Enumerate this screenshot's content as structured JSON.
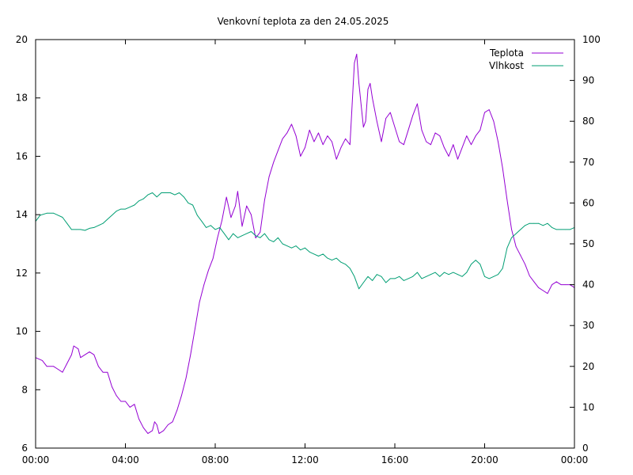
{
  "chart_data": {
    "type": "line",
    "title": "Venkovní teplota za den 24.05.2025",
    "xlabel": "",
    "ylabel": "",
    "y2label": "",
    "x_ticks": [
      "00:00",
      "04:00",
      "08:00",
      "12:00",
      "16:00",
      "20:00",
      "00:00"
    ],
    "x_range_hours": [
      0,
      24
    ],
    "ylim": [
      6,
      20
    ],
    "y_ticks": [
      6,
      8,
      10,
      12,
      14,
      16,
      18,
      20
    ],
    "y2lim": [
      0,
      100
    ],
    "y2_ticks": [
      0,
      10,
      20,
      30,
      40,
      50,
      60,
      70,
      80,
      90,
      100
    ],
    "grid": false,
    "legend_position": "top-right",
    "series": [
      {
        "name": "Teplota",
        "axis": "left",
        "color": "#9400d3",
        "points": [
          [
            0.0,
            9.1
          ],
          [
            0.3,
            9.0
          ],
          [
            0.5,
            8.8
          ],
          [
            0.8,
            8.8
          ],
          [
            1.0,
            8.7
          ],
          [
            1.2,
            8.6
          ],
          [
            1.4,
            8.9
          ],
          [
            1.6,
            9.2
          ],
          [
            1.7,
            9.5
          ],
          [
            1.9,
            9.4
          ],
          [
            2.0,
            9.1
          ],
          [
            2.2,
            9.2
          ],
          [
            2.4,
            9.3
          ],
          [
            2.6,
            9.2
          ],
          [
            2.8,
            8.8
          ],
          [
            3.0,
            8.6
          ],
          [
            3.2,
            8.6
          ],
          [
            3.4,
            8.1
          ],
          [
            3.6,
            7.8
          ],
          [
            3.8,
            7.6
          ],
          [
            4.0,
            7.6
          ],
          [
            4.2,
            7.4
          ],
          [
            4.4,
            7.5
          ],
          [
            4.6,
            7.0
          ],
          [
            4.8,
            6.7
          ],
          [
            5.0,
            6.5
          ],
          [
            5.2,
            6.6
          ],
          [
            5.3,
            6.9
          ],
          [
            5.4,
            6.8
          ],
          [
            5.5,
            6.5
          ],
          [
            5.7,
            6.6
          ],
          [
            5.9,
            6.8
          ],
          [
            6.1,
            6.9
          ],
          [
            6.3,
            7.3
          ],
          [
            6.5,
            7.8
          ],
          [
            6.7,
            8.4
          ],
          [
            6.9,
            9.2
          ],
          [
            7.1,
            10.1
          ],
          [
            7.3,
            11.0
          ],
          [
            7.5,
            11.6
          ],
          [
            7.7,
            12.1
          ],
          [
            7.9,
            12.5
          ],
          [
            8.1,
            13.2
          ],
          [
            8.3,
            13.8
          ],
          [
            8.5,
            14.6
          ],
          [
            8.7,
            13.9
          ],
          [
            8.9,
            14.3
          ],
          [
            9.0,
            14.8
          ],
          [
            9.2,
            13.6
          ],
          [
            9.4,
            14.3
          ],
          [
            9.6,
            14.0
          ],
          [
            9.8,
            13.2
          ],
          [
            10.0,
            13.4
          ],
          [
            10.2,
            14.5
          ],
          [
            10.4,
            15.3
          ],
          [
            10.6,
            15.8
          ],
          [
            10.8,
            16.2
          ],
          [
            11.0,
            16.6
          ],
          [
            11.2,
            16.8
          ],
          [
            11.4,
            17.1
          ],
          [
            11.6,
            16.7
          ],
          [
            11.8,
            16.0
          ],
          [
            12.0,
            16.3
          ],
          [
            12.2,
            16.9
          ],
          [
            12.4,
            16.5
          ],
          [
            12.6,
            16.8
          ],
          [
            12.8,
            16.4
          ],
          [
            13.0,
            16.7
          ],
          [
            13.2,
            16.5
          ],
          [
            13.4,
            15.9
          ],
          [
            13.6,
            16.3
          ],
          [
            13.8,
            16.6
          ],
          [
            14.0,
            16.4
          ],
          [
            14.1,
            17.8
          ],
          [
            14.2,
            19.2
          ],
          [
            14.3,
            19.5
          ],
          [
            14.4,
            18.5
          ],
          [
            14.6,
            17.0
          ],
          [
            14.7,
            17.2
          ],
          [
            14.8,
            18.3
          ],
          [
            14.9,
            18.5
          ],
          [
            15.0,
            18.0
          ],
          [
            15.2,
            17.2
          ],
          [
            15.4,
            16.5
          ],
          [
            15.6,
            17.3
          ],
          [
            15.8,
            17.5
          ],
          [
            16.0,
            17.0
          ],
          [
            16.2,
            16.5
          ],
          [
            16.4,
            16.4
          ],
          [
            16.6,
            16.9
          ],
          [
            16.8,
            17.4
          ],
          [
            17.0,
            17.8
          ],
          [
            17.2,
            16.9
          ],
          [
            17.4,
            16.5
          ],
          [
            17.6,
            16.4
          ],
          [
            17.8,
            16.8
          ],
          [
            18.0,
            16.7
          ],
          [
            18.2,
            16.3
          ],
          [
            18.4,
            16.0
          ],
          [
            18.6,
            16.4
          ],
          [
            18.8,
            15.9
          ],
          [
            19.0,
            16.3
          ],
          [
            19.2,
            16.7
          ],
          [
            19.4,
            16.4
          ],
          [
            19.6,
            16.7
          ],
          [
            19.8,
            16.9
          ],
          [
            20.0,
            17.5
          ],
          [
            20.2,
            17.6
          ],
          [
            20.4,
            17.2
          ],
          [
            20.6,
            16.5
          ],
          [
            20.8,
            15.6
          ],
          [
            21.0,
            14.5
          ],
          [
            21.2,
            13.5
          ],
          [
            21.4,
            12.9
          ],
          [
            21.6,
            12.6
          ],
          [
            21.8,
            12.3
          ],
          [
            22.0,
            11.9
          ],
          [
            22.2,
            11.7
          ],
          [
            22.4,
            11.5
          ],
          [
            22.6,
            11.4
          ],
          [
            22.8,
            11.3
          ],
          [
            23.0,
            11.6
          ],
          [
            23.2,
            11.7
          ],
          [
            23.4,
            11.6
          ],
          [
            23.6,
            11.6
          ],
          [
            23.8,
            11.6
          ],
          [
            24.0,
            11.5
          ]
        ]
      },
      {
        "name": "Vlhkost",
        "axis": "right",
        "color": "#009e73",
        "points": [
          [
            0.0,
            55.5
          ],
          [
            0.2,
            57.0
          ],
          [
            0.5,
            57.5
          ],
          [
            0.8,
            57.5
          ],
          [
            1.0,
            57.0
          ],
          [
            1.2,
            56.5
          ],
          [
            1.4,
            55.0
          ],
          [
            1.6,
            53.5
          ],
          [
            1.8,
            53.5
          ],
          [
            2.0,
            53.5
          ],
          [
            2.2,
            53.3
          ],
          [
            2.4,
            53.8
          ],
          [
            2.6,
            54.0
          ],
          [
            2.8,
            54.5
          ],
          [
            3.0,
            55.0
          ],
          [
            3.2,
            56.0
          ],
          [
            3.4,
            57.0
          ],
          [
            3.6,
            58.0
          ],
          [
            3.8,
            58.5
          ],
          [
            4.0,
            58.5
          ],
          [
            4.2,
            59.0
          ],
          [
            4.4,
            59.5
          ],
          [
            4.6,
            60.5
          ],
          [
            4.8,
            61.0
          ],
          [
            5.0,
            62.0
          ],
          [
            5.2,
            62.5
          ],
          [
            5.4,
            61.5
          ],
          [
            5.6,
            62.5
          ],
          [
            5.8,
            62.5
          ],
          [
            6.0,
            62.5
          ],
          [
            6.2,
            62.0
          ],
          [
            6.4,
            62.5
          ],
          [
            6.6,
            61.5
          ],
          [
            6.8,
            60.0
          ],
          [
            7.0,
            59.5
          ],
          [
            7.2,
            57.0
          ],
          [
            7.4,
            55.5
          ],
          [
            7.6,
            54.0
          ],
          [
            7.8,
            54.5
          ],
          [
            8.0,
            53.5
          ],
          [
            8.2,
            54.0
          ],
          [
            8.4,
            52.5
          ],
          [
            8.6,
            51.0
          ],
          [
            8.8,
            52.5
          ],
          [
            9.0,
            51.5
          ],
          [
            9.2,
            52.0
          ],
          [
            9.4,
            52.5
          ],
          [
            9.6,
            53.0
          ],
          [
            9.8,
            52.0
          ],
          [
            10.0,
            51.5
          ],
          [
            10.2,
            52.5
          ],
          [
            10.4,
            51.0
          ],
          [
            10.6,
            50.5
          ],
          [
            10.8,
            51.5
          ],
          [
            11.0,
            50.0
          ],
          [
            11.2,
            49.5
          ],
          [
            11.4,
            49.0
          ],
          [
            11.6,
            49.5
          ],
          [
            11.8,
            48.5
          ],
          [
            12.0,
            49.0
          ],
          [
            12.2,
            48.0
          ],
          [
            12.4,
            47.5
          ],
          [
            12.6,
            47.0
          ],
          [
            12.8,
            47.5
          ],
          [
            13.0,
            46.5
          ],
          [
            13.2,
            46.0
          ],
          [
            13.4,
            46.5
          ],
          [
            13.6,
            45.5
          ],
          [
            13.8,
            45.0
          ],
          [
            14.0,
            44.0
          ],
          [
            14.2,
            42.0
          ],
          [
            14.4,
            39.0
          ],
          [
            14.6,
            40.5
          ],
          [
            14.8,
            42.0
          ],
          [
            15.0,
            41.0
          ],
          [
            15.2,
            42.5
          ],
          [
            15.4,
            42.0
          ],
          [
            15.6,
            40.5
          ],
          [
            15.8,
            41.5
          ],
          [
            16.0,
            41.5
          ],
          [
            16.2,
            42.0
          ],
          [
            16.4,
            41.0
          ],
          [
            16.6,
            41.5
          ],
          [
            16.8,
            42.0
          ],
          [
            17.0,
            43.0
          ],
          [
            17.2,
            41.5
          ],
          [
            17.4,
            42.0
          ],
          [
            17.6,
            42.5
          ],
          [
            17.8,
            43.0
          ],
          [
            18.0,
            42.0
          ],
          [
            18.2,
            43.0
          ],
          [
            18.4,
            42.5
          ],
          [
            18.6,
            43.0
          ],
          [
            18.8,
            42.5
          ],
          [
            19.0,
            42.0
          ],
          [
            19.2,
            43.0
          ],
          [
            19.4,
            45.0
          ],
          [
            19.6,
            46.0
          ],
          [
            19.8,
            45.0
          ],
          [
            20.0,
            42.0
          ],
          [
            20.2,
            41.5
          ],
          [
            20.4,
            42.0
          ],
          [
            20.6,
            42.5
          ],
          [
            20.8,
            44.0
          ],
          [
            21.0,
            49.0
          ],
          [
            21.2,
            51.5
          ],
          [
            21.4,
            52.5
          ],
          [
            21.6,
            53.5
          ],
          [
            21.8,
            54.5
          ],
          [
            22.0,
            55.0
          ],
          [
            22.2,
            55.0
          ],
          [
            22.4,
            55.0
          ],
          [
            22.6,
            54.5
          ],
          [
            22.8,
            55.0
          ],
          [
            23.0,
            54.0
          ],
          [
            23.2,
            53.5
          ],
          [
            23.4,
            53.5
          ],
          [
            23.6,
            53.5
          ],
          [
            23.8,
            53.5
          ],
          [
            24.0,
            54.0
          ]
        ]
      }
    ]
  }
}
